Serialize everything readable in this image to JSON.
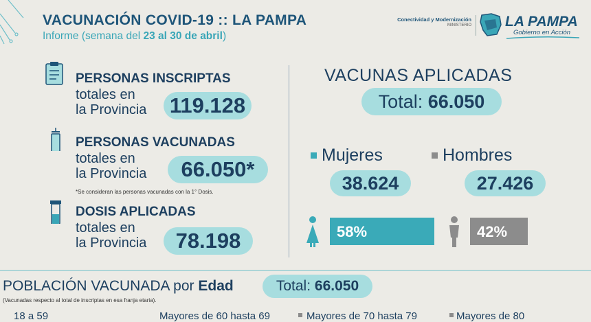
{
  "header": {
    "title": "VACUNACIÓN COVID-19 :: LA PAMPA",
    "subtitle_prefix": "Informe (semana del ",
    "subtitle_dates": "23 al 30 de abril",
    "subtitle_suffix": ")",
    "ministry_name": "Conectividad y Modernización",
    "ministry_label": "MINISTERIO",
    "brand_name": "LA PAMPA",
    "brand_slogan": "Gobierno en Acción"
  },
  "stats": [
    {
      "heading": "PERSONAS INSCRIPTAS",
      "line1": "totales en",
      "line2": "la Provincia",
      "value": "119.128",
      "icon": "clipboard-icon"
    },
    {
      "heading": "PERSONAS VACUNADAS",
      "line1": "totales en",
      "line2": "la Provincia",
      "value": "66.050*",
      "icon": "syringe-icon",
      "note": "*Se consideran las personas vacunadas con la 1° Dosis."
    },
    {
      "heading": "DOSIS APLICADAS",
      "line1": "totales en",
      "line2": "la Provincia",
      "value": "78.198",
      "icon": "vial-icon"
    }
  ],
  "vaccines": {
    "heading": "VACUNAS APLICADAS",
    "total_label": "Total: ",
    "total_value": "66.050",
    "women_label": "Mujeres",
    "women_value": "38.624",
    "women_pct_label": "58%",
    "women_pct": 58,
    "men_label": "Hombres",
    "men_value": "27.426",
    "men_pct_label": "42%",
    "men_pct": 42,
    "colors": {
      "women": "#3aaab8",
      "men": "#8c8c8c"
    }
  },
  "population": {
    "heading_prefix": "POBLACIÓN VACUNADA por ",
    "heading_bold": "Edad",
    "total_label": "Total: ",
    "total_value": "66.050",
    "note": "(Vacunadas respecto al total de inscriptas en esa franja etaria).",
    "age_groups": [
      "18 a 59",
      "Mayores de 60 hasta 69",
      "Mayores de 70 hasta 79",
      "Mayores de 80"
    ]
  },
  "colors": {
    "accent": "#3aa6b7",
    "pill": "#a7dddf",
    "text": "#1d3f5f",
    "background": "#ecebe6"
  }
}
